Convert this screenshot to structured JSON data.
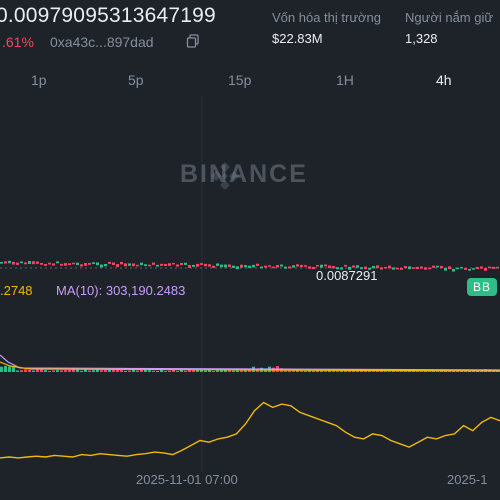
{
  "header": {
    "price": "0.00979095313647199",
    "change": ".61%",
    "address": "0xa43c...897dad"
  },
  "stats": {
    "market_cap_label": "Vốn hóa thị trường",
    "market_cap_value": "$22.83M",
    "holders_label": "Người nắm giữ",
    "holders_value": "1,328"
  },
  "tabs": [
    {
      "label": "1p",
      "active": false
    },
    {
      "label": "5p",
      "active": false
    },
    {
      "label": "15p",
      "active": false
    },
    {
      "label": "1H",
      "active": false
    },
    {
      "label": "4h",
      "active": true
    }
  ],
  "chart": {
    "watermark": "BINANCE",
    "current_price_label": "0.0087291",
    "badge": "BB",
    "ma_left": ".2748",
    "ma10": "MA(10): 303,190.2483",
    "x_labels": [
      "2025-11-01 07:00",
      "2025-1"
    ]
  },
  "colors": {
    "background": "#1e2329",
    "up": "#2ebd85",
    "down": "#f6465d",
    "ma_line": "#f0b90b",
    "ma10_line": "#c99bff"
  },
  "chart_data": {
    "type": "line",
    "title": "",
    "xlabel": "",
    "ylabel": "",
    "x_ticks": [
      "2025-11-01 07:00",
      "2025-1"
    ],
    "volume_ma_series": [
      {
        "name": "",
        "values": [
          5,
          6,
          5,
          6,
          7,
          6,
          8,
          7,
          6,
          9,
          8,
          10,
          9,
          8,
          7,
          9,
          10,
          12,
          11,
          9,
          14,
          20,
          26,
          24,
          28,
          30,
          34,
          46,
          62,
          72,
          66,
          70,
          68,
          60,
          56,
          52,
          48,
          44,
          36,
          30,
          28,
          34,
          32,
          26,
          22,
          18,
          24,
          30,
          28,
          32,
          34,
          44,
          38,
          48,
          54,
          50
        ]
      }
    ]
  }
}
